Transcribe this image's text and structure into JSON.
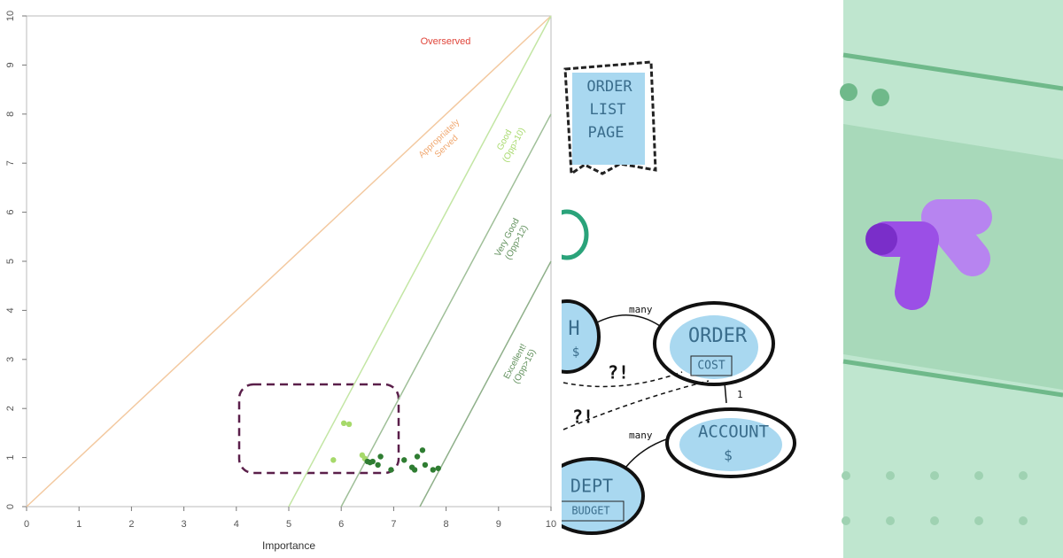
{
  "chart_data": {
    "type": "scatter",
    "xlabel": "Importance",
    "xlim": [
      0,
      10
    ],
    "ylim": [
      0,
      10
    ],
    "xticks": [
      0,
      1,
      2,
      3,
      4,
      5,
      6,
      7,
      8,
      9,
      10
    ],
    "yticks": [
      0,
      1,
      2,
      3,
      4,
      5,
      6,
      7,
      8,
      9,
      10
    ],
    "zone_label": {
      "text": "Overserved",
      "color": "#e0453a"
    },
    "reference_lines": [
      {
        "label": [
          "Appropriately",
          "Served"
        ],
        "color": "#f3c9a0",
        "x": [
          0,
          10
        ],
        "values": [
          0,
          10
        ]
      },
      {
        "label": [
          "Good",
          "(Opp>10)"
        ],
        "color": "#c3e6a4",
        "x": [
          5,
          10
        ],
        "values": [
          0,
          10
        ]
      },
      {
        "label": [
          "Very Good",
          "(Opp>12)"
        ],
        "color": "#9fbf98",
        "x": [
          6,
          10
        ],
        "values": [
          0,
          8
        ]
      },
      {
        "label": [
          "Excellent!",
          "(Opp>15)"
        ],
        "color": "#8fb08a",
        "x": [
          7.5,
          10
        ],
        "values": [
          0,
          5
        ]
      }
    ],
    "series": [
      {
        "color": "#a6d96a",
        "x": [
          6.05,
          6.15,
          5.85,
          6.4,
          6.45
        ],
        "values": [
          1.7,
          1.68,
          0.95,
          1.05,
          0.98
        ]
      },
      {
        "color": "#2f7d32",
        "x": [
          6.5,
          6.55,
          6.6,
          6.7,
          6.75,
          6.95,
          7.2,
          7.35,
          7.4,
          7.45,
          7.55,
          7.6,
          7.75,
          7.85
        ],
        "values": [
          0.92,
          0.9,
          0.92,
          0.85,
          1.02,
          0.75,
          0.95,
          0.8,
          0.75,
          1.02,
          1.15,
          0.85,
          0.75,
          0.78
        ]
      }
    ]
  },
  "sketch": {
    "note": [
      "ORDER",
      "LIST",
      "PAGE"
    ],
    "nodes": [
      {
        "label": "H",
        "sub": "$"
      },
      {
        "label": "ORDER",
        "sub": "COST"
      },
      {
        "label": "ACCOUNT",
        "sub": "$"
      },
      {
        "label": "DEPT",
        "sub": "BUDGET"
      }
    ],
    "edges": [
      "many",
      "1",
      "many",
      "?!",
      "?!"
    ]
  }
}
